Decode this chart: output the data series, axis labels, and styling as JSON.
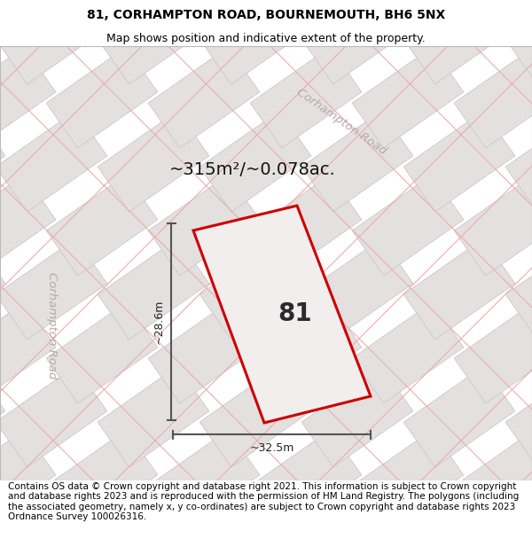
{
  "title_line1": "81, CORHAMPTON ROAD, BOURNEMOUTH, BH6 5NX",
  "title_line2": "Map shows position and indicative extent of the property.",
  "area_text": "~315m²/~0.078ac.",
  "property_number": "81",
  "width_label": "~32.5m",
  "height_label": "~28.6m",
  "road_label_top": "Corhampton Road",
  "road_label_left": "Corhampton Road",
  "footer_text": "Contains OS data © Crown copyright and database right 2021. This information is subject to Crown copyright and database rights 2023 and is reproduced with the permission of HM Land Registry. The polygons (including the associated geometry, namely x, y co-ordinates) are subject to Crown copyright and database rights 2023 Ordnance Survey 100026316.",
  "bg_color": "#eeecec",
  "tile_fill": "#e4e0e0",
  "tile_edge": "#ccc8c8",
  "road_line_color": "#e8aaaa",
  "property_outline": "#cc0000",
  "property_fill": "#f2eeee",
  "dim_line_color": "#555555",
  "road_text_color": "#b8a8a8",
  "title_fontsize": 10,
  "subtitle_fontsize": 9,
  "footer_fontsize": 7.5,
  "map_border_color": "#bbbbbb"
}
